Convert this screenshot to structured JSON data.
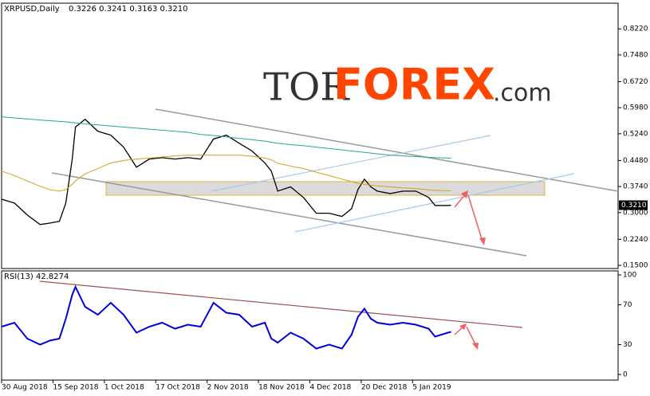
{
  "brand": [
    "TOR",
    "FOREX",
    ".com"
  ],
  "chart_data": [
    {
      "type": "line",
      "title": "XRPUSD,Daily",
      "ohlc_text": "0.3226 0.3241 0.3163 0.3210",
      "last_label": "0.3210",
      "x": [
        "2018-08-30",
        "2018-09-03",
        "2018-09-07",
        "2018-09-11",
        "2018-09-14",
        "2018-09-17",
        "2018-09-19",
        "2018-09-21",
        "2018-09-22",
        "2018-09-25",
        "2018-09-29",
        "2018-10-03",
        "2018-10-07",
        "2018-10-11",
        "2018-10-15",
        "2018-10-19",
        "2018-10-23",
        "2018-10-27",
        "2018-10-31",
        "2018-11-04",
        "2018-11-08",
        "2018-11-12",
        "2018-11-16",
        "2018-11-20",
        "2018-11-22",
        "2018-11-24",
        "2018-11-28",
        "2018-12-02",
        "2018-12-06",
        "2018-12-10",
        "2018-12-14",
        "2018-12-17",
        "2018-12-19",
        "2018-12-21",
        "2018-12-23",
        "2018-12-25",
        "2018-12-29",
        "2019-01-02",
        "2019-01-06",
        "2019-01-10",
        "2019-01-12",
        "2019-01-16",
        "2019-01-17"
      ],
      "series": [
        {
          "color": "#000000",
          "values": [
            0.338,
            0.327,
            0.293,
            0.266,
            0.27,
            0.275,
            0.327,
            0.452,
            0.543,
            0.565,
            0.531,
            0.52,
            0.486,
            0.429,
            0.452,
            0.456,
            0.452,
            0.456,
            0.452,
            0.509,
            0.52,
            0.497,
            0.475,
            0.441,
            0.418,
            0.361,
            0.373,
            0.343,
            0.298,
            0.298,
            0.289,
            0.311,
            0.366,
            0.395,
            0.373,
            0.361,
            0.354,
            0.361,
            0.361,
            0.343,
            0.32,
            0.32,
            0.321
          ]
        },
        {
          "color": "#d4a017",
          "values": [
            0.418,
            0.405,
            0.39,
            0.375,
            0.365,
            0.361,
            0.365,
            0.38,
            0.39,
            0.41,
            0.425,
            0.441,
            0.448,
            0.452,
            0.455,
            0.458,
            0.461,
            0.463,
            0.463,
            0.463,
            0.463,
            0.463,
            0.46,
            0.455,
            0.45,
            0.44,
            0.432,
            0.425,
            0.415,
            0.405,
            0.395,
            0.388,
            0.383,
            0.38,
            0.378,
            0.376,
            0.373,
            0.37,
            0.368,
            0.365,
            0.363,
            0.362,
            0.361
          ]
        },
        {
          "color": "#26a69a",
          "values": [
            0.572,
            0.569,
            0.566,
            0.563,
            0.561,
            0.559,
            0.558,
            0.556,
            0.555,
            0.552,
            0.549,
            0.546,
            0.543,
            0.54,
            0.537,
            0.534,
            0.531,
            0.528,
            0.522,
            0.519,
            0.515,
            0.511,
            0.507,
            0.503,
            0.5,
            0.497,
            0.493,
            0.49,
            0.486,
            0.482,
            0.478,
            0.475,
            0.473,
            0.471,
            0.469,
            0.467,
            0.463,
            0.461,
            0.459,
            0.457,
            0.456,
            0.455,
            0.455
          ]
        }
      ],
      "xlim": [
        "2018-08-30",
        "2019-03-10"
      ],
      "ylim": [
        0.141,
        0.895
      ],
      "yticks": [
        {
          "value": 0.822,
          "label": "0.8220"
        },
        {
          "value": 0.748,
          "label": "0.7480"
        },
        {
          "value": 0.672,
          "label": "0.6720"
        },
        {
          "value": 0.598,
          "label": "0.5980"
        },
        {
          "value": 0.524,
          "label": "0.5240"
        },
        {
          "value": 0.448,
          "label": "0.4480"
        },
        {
          "value": 0.374,
          "label": "0.3740"
        },
        {
          "value": 0.3,
          "label": "0.3000"
        },
        {
          "value": 0.224,
          "label": "0.2240"
        },
        {
          "value": 0.15,
          "label": "0.1500"
        }
      ]
    },
    {
      "type": "line",
      "title": "RSI(13) 42.8274",
      "x": [
        "2018-08-30",
        "2018-09-03",
        "2018-09-07",
        "2018-09-11",
        "2018-09-14",
        "2018-09-17",
        "2018-09-19",
        "2018-09-21",
        "2018-09-22",
        "2018-09-25",
        "2018-09-29",
        "2018-10-03",
        "2018-10-07",
        "2018-10-11",
        "2018-10-15",
        "2018-10-19",
        "2018-10-23",
        "2018-10-27",
        "2018-10-31",
        "2018-11-04",
        "2018-11-08",
        "2018-11-12",
        "2018-11-16",
        "2018-11-20",
        "2018-11-22",
        "2018-11-24",
        "2018-11-28",
        "2018-12-02",
        "2018-12-06",
        "2018-12-10",
        "2018-12-14",
        "2018-12-17",
        "2018-12-19",
        "2018-12-21",
        "2018-12-23",
        "2018-12-25",
        "2018-12-29",
        "2019-01-02",
        "2019-01-06",
        "2019-01-10",
        "2019-01-12",
        "2019-01-16",
        "2019-01-17"
      ],
      "series": [
        {
          "color": "#0000dd",
          "values": [
            48,
            52,
            36,
            30,
            34,
            36,
            56,
            80,
            88,
            68,
            60,
            72,
            60,
            42,
            48,
            52,
            46,
            50,
            48,
            72,
            62,
            60,
            48,
            52,
            36,
            32,
            42,
            36,
            26,
            30,
            26,
            40,
            58,
            66,
            56,
            52,
            50,
            52,
            50,
            46,
            38,
            42,
            42.8274
          ]
        }
      ],
      "xlim": [
        "2018-08-30",
        "2019-03-10"
      ],
      "ylim": [
        -5.6,
        104
      ],
      "yticks": [
        100,
        70,
        30,
        0
      ],
      "xticks": [
        {
          "value": "2018-08-30",
          "label": "30 Aug 2018"
        },
        {
          "value": "2018-09-15",
          "label": "15 Sep 2018"
        },
        {
          "value": "2018-10-01",
          "label": "1 Oct 2018"
        },
        {
          "value": "2018-10-17",
          "label": "17 Oct 2018"
        },
        {
          "value": "2018-11-02",
          "label": "2 Nov 2018"
        },
        {
          "value": "2018-11-18",
          "label": "18 Nov 2018"
        },
        {
          "value": "2018-12-04",
          "label": "4 Dec 2018"
        },
        {
          "value": "2018-12-20",
          "label": "20 Dec 2018"
        },
        {
          "value": "2019-01-05",
          "label": "5 Jan 2019"
        }
      ]
    }
  ]
}
